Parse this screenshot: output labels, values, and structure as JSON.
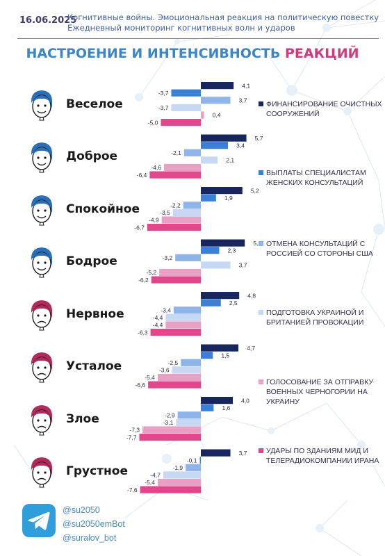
{
  "header": {
    "date": "16.06.2025",
    "line1": "Когнитивные войны. Эмоциональная реакция на политическую повестку",
    "line2": "Ежедневный мониторинг когнитивных волн и ударов"
  },
  "title": {
    "part1": "НАСТРОЕНИЕ И ИНТЕНСИВНОСТЬ",
    "part2": "РЕАКЦИЙ"
  },
  "colors": {
    "series": [
      "#17265f",
      "#3b7fd6",
      "#8fb4ea",
      "#c7d8f5",
      "#e8a0c4",
      "#e2478b"
    ],
    "title_blue": "#3a86c8",
    "title_pink": "#d0397b",
    "accent_line": "#c9579a"
  },
  "chart_data": {
    "type": "bar",
    "orientation": "horizontal",
    "categories": [
      "Веселое",
      "Доброе",
      "Спокойное",
      "Бодрое",
      "Нервное",
      "Усталое",
      "Злое",
      "Грустное"
    ],
    "series": [
      {
        "name": "Финансирование очистных сооружений",
        "values": [
          4.1,
          5.7,
          5.2,
          5.5,
          4.8,
          4.7,
          4.0,
          3.7
        ]
      },
      {
        "name": "Выплаты специалистам женских консультаций",
        "values": [
          -3.7,
          3.4,
          1.9,
          2.3,
          2.5,
          1.5,
          1.6,
          -0.1
        ]
      },
      {
        "name": "Отмена консультаций с Россией со стороны США",
        "values": [
          3.7,
          -2.1,
          -2.2,
          -3.2,
          -3.4,
          -2.5,
          -2.9,
          -1.9
        ]
      },
      {
        "name": "Подготовка Украиной и Британией провокации",
        "values": [
          -3.7,
          2.1,
          -3.5,
          3.7,
          -4.4,
          -3.6,
          -3.1,
          -4.7
        ]
      },
      {
        "name": "Голосование за отправку военных Черногории на Украину",
        "values": [
          0.4,
          -4.6,
          -4.9,
          -5.2,
          -4.4,
          -5.4,
          -7.3,
          -5.4
        ]
      },
      {
        "name": "Удары по зданиям МИД и телерадиокомпании Ирана",
        "values": [
          -5.0,
          -6.4,
          -6.7,
          -6.2,
          -6.3,
          -6.6,
          -7.7,
          -7.6
        ]
      }
    ],
    "labels": [
      [
        "4,1",
        "-3,7",
        "3,7",
        "-3,7",
        "0,4",
        "-5,0"
      ],
      [
        "5,7",
        "3,4",
        "-2,1",
        "2,1",
        "-4,6",
        "-6,4"
      ],
      [
        "5,2",
        "1,9",
        "-2,2",
        "-3,5",
        "-4,9",
        "-6,7"
      ],
      [
        "5,5",
        "2,3",
        "-3,2",
        "3,7",
        "-5,2",
        "-6,2"
      ],
      [
        "4,8",
        "2,5",
        "-3,4",
        "-4,4",
        "-4,4",
        "-6,3"
      ],
      [
        "4,7",
        "1,5",
        "-2,5",
        "-3,6",
        "-5,4",
        "-6,6"
      ],
      [
        "4,0",
        "1,6",
        "-2,9",
        "-3,1",
        "-7,3",
        "-7,7"
      ],
      [
        "3,7",
        "-0,1",
        "-1,9",
        "-4,7",
        "-5,4",
        "-7,6"
      ]
    ],
    "xlim": [
      -8,
      6
    ],
    "legend_position": "right"
  },
  "legend": [
    "Финансирование очистных сооружений",
    "Выплаты специалистам женских консультаций",
    "Отмена консультаций с Россией со стороны США",
    "Подготовка Украиной и Британией провокации",
    "Голосование за отправку военных Черногории на Украину",
    "Удары по зданиям МИД и телерадиокомпании Ирана"
  ],
  "footer": {
    "icon": "telegram-icon",
    "handles": [
      "@su2050",
      "@su2050emBot",
      "@suralov_bot"
    ]
  }
}
